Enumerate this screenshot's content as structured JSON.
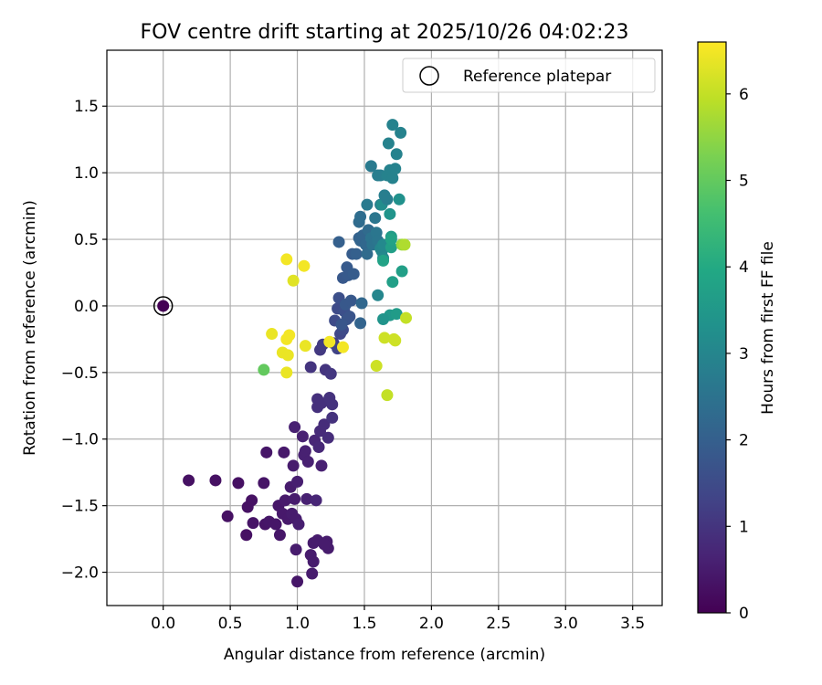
{
  "chart_data": {
    "type": "scatter",
    "title": "FOV centre drift starting at 2025/10/26 04:02:23",
    "xlabel": "Angular distance from reference (arcmin)",
    "ylabel": "Rotation from reference (arcmin)",
    "xlim": [
      -0.42,
      3.72
    ],
    "ylim": [
      -2.25,
      1.92
    ],
    "xticks": [
      0.0,
      0.5,
      1.0,
      1.5,
      2.0,
      2.5,
      3.0,
      3.5
    ],
    "xtick_labels": [
      "0.0",
      "0.5",
      "1.0",
      "1.5",
      "2.0",
      "2.5",
      "3.0",
      "3.5"
    ],
    "yticks": [
      -2.0,
      -1.5,
      -1.0,
      -0.5,
      0.0,
      0.5,
      1.0,
      1.5
    ],
    "ytick_labels": [
      "−2.0",
      "−1.5",
      "−1.0",
      "−0.5",
      "0.0",
      "0.5",
      "1.0",
      "1.5"
    ],
    "grid": true,
    "legend": {
      "position": "top-right",
      "entries": [
        "Reference platepar"
      ]
    },
    "colorbar": {
      "label": "Hours from first FF file",
      "range": [
        0,
        6.6
      ],
      "ticks": [
        0,
        1,
        2,
        3,
        4,
        5,
        6
      ],
      "tick_labels": [
        "0",
        "1",
        "2",
        "3",
        "4",
        "5",
        "6"
      ],
      "colormap": "viridis"
    },
    "reference_point": {
      "x": 0.0,
      "y": 0.0,
      "label": "Reference platepar"
    },
    "points": [
      {
        "x": 0.0,
        "y": 0.0,
        "t": 0.0
      },
      {
        "x": 0.19,
        "y": -1.31,
        "t": 0.3
      },
      {
        "x": 0.39,
        "y": -1.31,
        "t": 0.3
      },
      {
        "x": 0.48,
        "y": -1.58,
        "t": 0.3
      },
      {
        "x": 0.56,
        "y": -1.33,
        "t": 0.3
      },
      {
        "x": 0.63,
        "y": -1.51,
        "t": 0.3
      },
      {
        "x": 0.66,
        "y": -1.46,
        "t": 0.3
      },
      {
        "x": 0.62,
        "y": -1.72,
        "t": 0.3
      },
      {
        "x": 0.67,
        "y": -1.63,
        "t": 0.35
      },
      {
        "x": 0.75,
        "y": -1.33,
        "t": 0.35
      },
      {
        "x": 0.76,
        "y": -1.64,
        "t": 0.35
      },
      {
        "x": 0.77,
        "y": -1.1,
        "t": 0.4
      },
      {
        "x": 0.79,
        "y": -1.62,
        "t": 0.4
      },
      {
        "x": 0.84,
        "y": -1.64,
        "t": 0.4
      },
      {
        "x": 0.86,
        "y": -1.5,
        "t": 0.4
      },
      {
        "x": 0.87,
        "y": -1.72,
        "t": 0.4
      },
      {
        "x": 0.89,
        "y": -1.56,
        "t": 0.45
      },
      {
        "x": 0.9,
        "y": -1.1,
        "t": 0.45
      },
      {
        "x": 0.91,
        "y": -1.46,
        "t": 0.45
      },
      {
        "x": 0.93,
        "y": -1.6,
        "t": 0.45
      },
      {
        "x": 0.95,
        "y": -1.36,
        "t": 0.5
      },
      {
        "x": 0.96,
        "y": -1.56,
        "t": 0.5
      },
      {
        "x": 0.97,
        "y": -1.2,
        "t": 0.5
      },
      {
        "x": 0.98,
        "y": -1.45,
        "t": 0.5
      },
      {
        "x": 0.99,
        "y": -1.6,
        "t": 0.5
      },
      {
        "x": 0.99,
        "y": -1.83,
        "t": 0.5
      },
      {
        "x": 1.0,
        "y": -1.32,
        "t": 0.55
      },
      {
        "x": 1.0,
        "y": -2.07,
        "t": 0.4
      },
      {
        "x": 1.01,
        "y": -1.64,
        "t": 0.55
      },
      {
        "x": 0.98,
        "y": -0.91,
        "t": 0.6
      },
      {
        "x": 1.04,
        "y": -0.98,
        "t": 0.6
      },
      {
        "x": 1.05,
        "y": -1.12,
        "t": 0.6
      },
      {
        "x": 1.06,
        "y": -1.09,
        "t": 0.6
      },
      {
        "x": 1.07,
        "y": -1.45,
        "t": 0.6
      },
      {
        "x": 1.08,
        "y": -1.17,
        "t": 0.6
      },
      {
        "x": 1.1,
        "y": -1.87,
        "t": 0.5
      },
      {
        "x": 1.11,
        "y": -2.01,
        "t": 0.5
      },
      {
        "x": 1.12,
        "y": -1.78,
        "t": 0.5
      },
      {
        "x": 1.12,
        "y": -1.92,
        "t": 0.5
      },
      {
        "x": 1.13,
        "y": -1.01,
        "t": 0.7
      },
      {
        "x": 1.14,
        "y": -1.46,
        "t": 0.7
      },
      {
        "x": 1.15,
        "y": -1.76,
        "t": 0.5
      },
      {
        "x": 1.16,
        "y": -1.06,
        "t": 0.75
      },
      {
        "x": 1.18,
        "y": -1.2,
        "t": 0.6
      },
      {
        "x": 1.22,
        "y": -1.77,
        "t": 0.5
      },
      {
        "x": 1.23,
        "y": -1.82,
        "t": 0.5
      },
      {
        "x": 1.2,
        "y": -1.79,
        "t": 0.5
      },
      {
        "x": 1.17,
        "y": -0.94,
        "t": 0.8
      },
      {
        "x": 1.2,
        "y": -0.89,
        "t": 0.85
      },
      {
        "x": 1.23,
        "y": -0.99,
        "t": 0.85
      },
      {
        "x": 1.15,
        "y": -0.7,
        "t": 0.9
      },
      {
        "x": 1.15,
        "y": -0.76,
        "t": 0.9
      },
      {
        "x": 1.18,
        "y": -0.73,
        "t": 0.9
      },
      {
        "x": 1.24,
        "y": -0.69,
        "t": 0.95
      },
      {
        "x": 1.26,
        "y": -0.74,
        "t": 0.95
      },
      {
        "x": 1.26,
        "y": -0.84,
        "t": 0.95
      },
      {
        "x": 1.1,
        "y": -0.46,
        "t": 1.0
      },
      {
        "x": 1.21,
        "y": -0.48,
        "t": 1.0
      },
      {
        "x": 1.25,
        "y": -0.51,
        "t": 1.05
      },
      {
        "x": 1.17,
        "y": -0.33,
        "t": 1.1
      },
      {
        "x": 1.19,
        "y": -0.29,
        "t": 1.15
      },
      {
        "x": 1.27,
        "y": -0.28,
        "t": 1.2
      },
      {
        "x": 1.3,
        "y": -0.32,
        "t": 1.3
      },
      {
        "x": 1.32,
        "y": -0.21,
        "t": 1.4
      },
      {
        "x": 1.34,
        "y": -0.18,
        "t": 1.5
      },
      {
        "x": 1.3,
        "y": -0.02,
        "t": 1.5
      },
      {
        "x": 1.28,
        "y": -0.11,
        "t": 1.5
      },
      {
        "x": 1.31,
        "y": 0.06,
        "t": 1.6
      },
      {
        "x": 1.35,
        "y": -0.04,
        "t": 1.6
      },
      {
        "x": 1.37,
        "y": -0.1,
        "t": 1.7
      },
      {
        "x": 1.39,
        "y": -0.08,
        "t": 1.7
      },
      {
        "x": 1.33,
        "y": -0.14,
        "t": 1.75
      },
      {
        "x": 1.36,
        "y": 0.01,
        "t": 1.8
      },
      {
        "x": 1.4,
        "y": 0.04,
        "t": 1.8
      },
      {
        "x": 1.34,
        "y": 0.21,
        "t": 1.8
      },
      {
        "x": 1.38,
        "y": 0.23,
        "t": 1.85
      },
      {
        "x": 1.37,
        "y": 0.29,
        "t": 1.85
      },
      {
        "x": 1.42,
        "y": 0.24,
        "t": 1.9
      },
      {
        "x": 1.41,
        "y": 0.39,
        "t": 1.9
      },
      {
        "x": 1.44,
        "y": 0.39,
        "t": 2.0
      },
      {
        "x": 1.47,
        "y": -0.13,
        "t": 2.1
      },
      {
        "x": 1.31,
        "y": 0.48,
        "t": 2.0
      },
      {
        "x": 1.46,
        "y": 0.51,
        "t": 2.05
      },
      {
        "x": 1.47,
        "y": 0.49,
        "t": 2.1
      },
      {
        "x": 1.49,
        "y": 0.53,
        "t": 2.15
      },
      {
        "x": 1.51,
        "y": 0.46,
        "t": 2.2
      },
      {
        "x": 1.48,
        "y": 0.02,
        "t": 2.2
      },
      {
        "x": 1.52,
        "y": 0.39,
        "t": 2.3
      },
      {
        "x": 1.53,
        "y": 0.57,
        "t": 2.3
      },
      {
        "x": 1.46,
        "y": 0.63,
        "t": 2.3
      },
      {
        "x": 1.47,
        "y": 0.67,
        "t": 2.35
      },
      {
        "x": 1.55,
        "y": 0.51,
        "t": 2.5
      },
      {
        "x": 1.56,
        "y": 0.46,
        "t": 2.5
      },
      {
        "x": 1.58,
        "y": 0.66,
        "t": 2.6
      },
      {
        "x": 1.59,
        "y": 0.55,
        "t": 2.6
      },
      {
        "x": 1.6,
        "y": 0.49,
        "t": 2.6
      },
      {
        "x": 1.52,
        "y": 0.76,
        "t": 2.7
      },
      {
        "x": 1.62,
        "y": 0.76,
        "t": 2.7
      },
      {
        "x": 1.6,
        "y": 0.08,
        "t": 3.0
      },
      {
        "x": 1.62,
        "y": 0.43,
        "t": 3.0
      },
      {
        "x": 1.63,
        "y": 0.41,
        "t": 3.0
      },
      {
        "x": 1.64,
        "y": 0.36,
        "t": 3.1
      },
      {
        "x": 1.64,
        "y": 0.46,
        "t": 3.1
      },
      {
        "x": 1.63,
        "y": 0.76,
        "t": 3.2
      },
      {
        "x": 1.65,
        "y": 0.83,
        "t": 2.8
      },
      {
        "x": 1.67,
        "y": 0.8,
        "t": 2.8
      },
      {
        "x": 1.55,
        "y": 1.05,
        "t": 2.7
      },
      {
        "x": 1.6,
        "y": 0.98,
        "t": 2.8
      },
      {
        "x": 1.62,
        "y": 0.98,
        "t": 2.8
      },
      {
        "x": 1.67,
        "y": 0.98,
        "t": 2.9
      },
      {
        "x": 1.69,
        "y": 1.02,
        "t": 2.9
      },
      {
        "x": 1.71,
        "y": 0.96,
        "t": 2.9
      },
      {
        "x": 1.73,
        "y": 1.03,
        "t": 2.9
      },
      {
        "x": 1.68,
        "y": 1.22,
        "t": 2.9
      },
      {
        "x": 1.74,
        "y": 1.14,
        "t": 2.9
      },
      {
        "x": 1.71,
        "y": 1.36,
        "t": 2.9
      },
      {
        "x": 1.77,
        "y": 1.3,
        "t": 2.9
      },
      {
        "x": 1.76,
        "y": 0.8,
        "t": 3.3
      },
      {
        "x": 1.69,
        "y": 0.69,
        "t": 3.4
      },
      {
        "x": 1.7,
        "y": 0.52,
        "t": 3.6
      },
      {
        "x": 1.7,
        "y": 0.44,
        "t": 3.7
      },
      {
        "x": 1.7,
        "y": 0.5,
        "t": 3.8
      },
      {
        "x": 1.64,
        "y": 0.34,
        "t": 3.8
      },
      {
        "x": 1.71,
        "y": 0.18,
        "t": 3.7
      },
      {
        "x": 1.78,
        "y": 0.26,
        "t": 3.7
      },
      {
        "x": 1.69,
        "y": -0.07,
        "t": 3.5
      },
      {
        "x": 1.74,
        "y": -0.06,
        "t": 3.6
      },
      {
        "x": 1.64,
        "y": -0.1,
        "t": 3.4
      },
      {
        "x": 1.78,
        "y": 0.46,
        "t": 5.6
      },
      {
        "x": 1.8,
        "y": 0.46,
        "t": 5.8
      },
      {
        "x": 1.81,
        "y": -0.09,
        "t": 6.0
      },
      {
        "x": 1.65,
        "y": -0.24,
        "t": 6.1
      },
      {
        "x": 1.72,
        "y": -0.25,
        "t": 6.1
      },
      {
        "x": 1.73,
        "y": -0.26,
        "t": 6.1
      },
      {
        "x": 1.59,
        "y": -0.45,
        "t": 6.1
      },
      {
        "x": 1.67,
        "y": -0.67,
        "t": 6.0
      },
      {
        "x": 0.92,
        "y": 0.35,
        "t": 6.5
      },
      {
        "x": 1.05,
        "y": 0.3,
        "t": 6.5
      },
      {
        "x": 0.97,
        "y": 0.19,
        "t": 6.3
      },
      {
        "x": 0.81,
        "y": -0.21,
        "t": 6.4
      },
      {
        "x": 0.92,
        "y": -0.25,
        "t": 6.5
      },
      {
        "x": 0.94,
        "y": -0.22,
        "t": 6.5
      },
      {
        "x": 1.06,
        "y": -0.3,
        "t": 6.4
      },
      {
        "x": 0.89,
        "y": -0.35,
        "t": 6.4
      },
      {
        "x": 0.93,
        "y": -0.37,
        "t": 6.4
      },
      {
        "x": 0.92,
        "y": -0.5,
        "t": 6.4
      },
      {
        "x": 0.75,
        "y": -0.48,
        "t": 5.0
      },
      {
        "x": 1.24,
        "y": -0.27,
        "t": 6.5
      },
      {
        "x": 1.34,
        "y": -0.31,
        "t": 6.5
      }
    ]
  }
}
